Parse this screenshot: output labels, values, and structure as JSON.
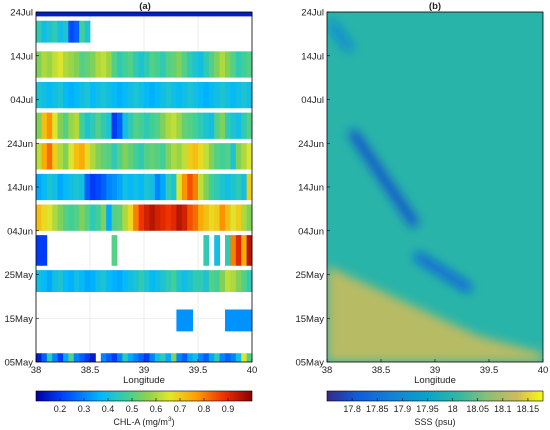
{
  "chart_data": [
    {
      "type": "heatmap",
      "panel_label": "(a)",
      "xlabel": "Longitude",
      "xlim": [
        38,
        40
      ],
      "x_ticks": [
        "38",
        "38.5",
        "39",
        "39.5",
        "40"
      ],
      "y_ticks": [
        "05May",
        "15May",
        "25May",
        "04Jun",
        "14Jun",
        "24Jun",
        "04Jul",
        "14Jul",
        "24Jul"
      ],
      "y_tick_days": [
        0,
        10,
        20,
        30,
        40,
        50,
        60,
        70,
        80
      ],
      "grid": true,
      "colorbar": {
        "label_prefix": "CHL-A (mg/m",
        "label_sup": "3",
        "label_suffix": ")",
        "range": [
          0.1,
          1.0
        ],
        "ticks": [
          "0.2",
          "0.3",
          "0.4",
          "0.5",
          "0.6",
          "0.7",
          "0.8",
          "0.9"
        ],
        "tick_values": [
          0.2,
          0.3,
          0.4,
          0.5,
          0.6,
          0.7,
          0.8,
          0.9
        ],
        "colormap": "jet"
      },
      "bands": [
        {
          "date_from": "05May",
          "date_to": "07May",
          "values": [
            0.15,
            0.25,
            0.45,
            0.3,
            0.2,
            0.35,
            0.5,
            0.3,
            0.25,
            0.2,
            0.15,
            null,
            0.3,
            0.25,
            0.2,
            0.3,
            0.45,
            0.35,
            0.3,
            0.25,
            0.2,
            0.3,
            0.4,
            0.45,
            0.35,
            0.55,
            0.3,
            0.25,
            0.35,
            0.4,
            0.3,
            0.25,
            0.35,
            0.45,
            0.3,
            0.25,
            0.3,
            0.4,
            0.65,
            0.5
          ]
        },
        {
          "date_from": "12May",
          "date_to": "17May",
          "values": [
            null,
            null,
            null,
            null,
            null,
            null,
            null,
            null,
            null,
            null,
            null,
            null,
            null,
            null,
            null,
            null,
            null,
            null,
            null,
            null,
            null,
            null,
            null,
            null,
            null,
            null,
            0.32,
            0.32,
            0.32,
            null,
            null,
            null,
            null,
            null,
            null,
            0.32,
            0.32,
            0.32,
            0.32,
            0.32
          ]
        },
        {
          "date_from": "21May",
          "date_to": "26May",
          "values": [
            0.4,
            0.38,
            0.35,
            0.4,
            0.42,
            0.38,
            0.36,
            0.4,
            0.38,
            0.35,
            0.36,
            0.4,
            0.42,
            0.38,
            0.36,
            0.35,
            0.38,
            0.4,
            0.42,
            0.45,
            0.42,
            0.38,
            0.4,
            0.42,
            0.45,
            0.48,
            0.42,
            0.4,
            0.42,
            0.45,
            0.45,
            0.42,
            0.5,
            0.48,
            0.55,
            0.62,
            0.6,
            0.55,
            0.5,
            0.45
          ]
        },
        {
          "date_from": "27May",
          "date_to": "03Jun",
          "values": [
            0.2,
            0.2,
            null,
            null,
            null,
            null,
            null,
            null,
            null,
            null,
            null,
            null,
            null,
            null,
            0.5,
            null,
            null,
            null,
            null,
            null,
            null,
            null,
            null,
            null,
            null,
            null,
            null,
            null,
            null,
            null,
            null,
            0.45,
            null,
            0.4,
            null,
            0.45,
            0.8,
            0.9,
            0.75,
            0.95
          ]
        },
        {
          "date_from": "04Jun",
          "date_to": "10Jun",
          "values": [
            0.72,
            0.68,
            0.65,
            0.6,
            0.55,
            0.5,
            0.48,
            0.5,
            0.55,
            0.5,
            0.45,
            0.48,
            0.55,
            0.35,
            0.5,
            0.52,
            0.6,
            0.68,
            0.8,
            0.88,
            0.92,
            0.95,
            0.92,
            0.9,
            0.88,
            0.9,
            0.95,
            0.92,
            0.85,
            0.82,
            0.75,
            0.72,
            0.68,
            0.7,
            0.78,
            0.72,
            0.65,
            0.7,
            0.6,
            0.55
          ]
        },
        {
          "date_from": "11Jun",
          "date_to": "17Jun",
          "values": [
            0.35,
            0.38,
            0.42,
            0.4,
            0.35,
            0.38,
            0.4,
            0.42,
            0.4,
            0.25,
            0.2,
            0.22,
            0.25,
            0.3,
            0.32,
            0.35,
            0.4,
            0.38,
            0.4,
            0.38,
            0.42,
            0.4,
            0.3,
            0.35,
            0.45,
            0.42,
            0.65,
            0.78,
            0.85,
            0.8,
            0.62,
            0.55,
            0.48,
            0.45,
            0.42,
            0.4,
            0.42,
            0.45,
            0.4,
            0.7
          ]
        },
        {
          "date_from": "18Jun",
          "date_to": "24Jun",
          "values": [
            0.62,
            0.75,
            0.82,
            0.7,
            0.6,
            0.55,
            0.65,
            0.72,
            0.75,
            0.68,
            0.6,
            0.55,
            0.52,
            0.5,
            0.45,
            0.5,
            0.55,
            0.52,
            0.48,
            0.45,
            0.5,
            0.52,
            0.5,
            0.48,
            0.55,
            0.6,
            0.58,
            0.62,
            0.7,
            0.72,
            0.68,
            0.62,
            0.55,
            0.5,
            0.48,
            0.5,
            0.42,
            0.55,
            0.6,
            0.65
          ]
        },
        {
          "date_from": "25Jun",
          "date_to": "01Jul",
          "values": [
            0.55,
            0.72,
            0.78,
            0.65,
            0.55,
            0.5,
            0.58,
            0.6,
            0.48,
            0.42,
            0.45,
            0.5,
            0.45,
            0.42,
            0.2,
            0.25,
            0.4,
            0.45,
            0.5,
            0.48,
            0.45,
            0.48,
            0.5,
            0.55,
            0.6,
            0.62,
            0.58,
            0.52,
            0.5,
            0.48,
            0.45,
            0.42,
            0.4,
            0.5,
            0.55,
            0.45,
            0.42,
            0.4,
            0.45,
            0.5
          ]
        },
        {
          "date_from": "02Jul",
          "date_to": "08Jul",
          "values": [
            0.42,
            0.4,
            0.38,
            0.4,
            0.42,
            0.38,
            0.36,
            0.38,
            0.4,
            0.42,
            0.38,
            0.4,
            0.42,
            0.4,
            0.38,
            0.36,
            0.38,
            0.4,
            0.42,
            0.4,
            0.38,
            0.36,
            0.38,
            0.4,
            0.42,
            0.4,
            0.38,
            0.4,
            0.42,
            0.4,
            0.38,
            0.36,
            0.38,
            0.4,
            0.42,
            0.4,
            0.38,
            0.4,
            0.42,
            0.4
          ]
        },
        {
          "date_from": "09Jul",
          "date_to": "15Jul",
          "values": [
            0.55,
            0.6,
            0.58,
            0.62,
            0.65,
            0.6,
            0.58,
            0.55,
            0.5,
            0.52,
            0.55,
            0.6,
            0.62,
            0.58,
            0.5,
            0.45,
            0.48,
            0.5,
            0.45,
            0.42,
            0.45,
            0.5,
            0.48,
            0.45,
            0.5,
            0.52,
            0.55,
            0.5,
            0.45,
            0.42,
            0.4,
            0.45,
            0.5,
            0.55,
            0.6,
            0.55,
            0.5,
            0.45,
            0.48,
            0.5
          ]
        },
        {
          "date_from": "17Jul",
          "date_to": "22Jul",
          "values": [
            0.45,
            0.4,
            0.42,
            0.45,
            0.4,
            0.42,
            0.22,
            0.25,
            0.48,
            0.42,
            null,
            null,
            null,
            null,
            null,
            null,
            null,
            null,
            null,
            null,
            null,
            null,
            null,
            null,
            null,
            null,
            null,
            null,
            null,
            null,
            null,
            null,
            null,
            null,
            null,
            null,
            null,
            null,
            null,
            null
          ]
        },
        {
          "date_from": "23Jul",
          "date_to": "24Jul",
          "values": [
            0.15,
            0.15,
            0.15,
            0.15,
            0.15,
            0.15,
            0.15,
            0.15,
            0.15,
            0.15,
            0.15,
            0.15,
            0.15,
            0.15,
            0.15,
            0.15,
            0.15,
            0.15,
            0.15,
            0.15,
            0.15,
            0.15,
            0.15,
            0.15,
            0.15,
            0.15,
            0.15,
            0.15,
            0.15,
            0.15,
            0.15,
            0.15,
            0.15,
            0.15,
            0.15,
            0.15,
            0.15,
            0.15,
            0.15,
            0.15
          ]
        }
      ]
    },
    {
      "type": "heatmap",
      "panel_label": "(b)",
      "xlabel": "Longitude",
      "xlim": [
        38,
        40
      ],
      "x_ticks": [
        "38",
        "38.5",
        "39",
        "39.5",
        "40"
      ],
      "y_ticks": [
        "05May",
        "15May",
        "25May",
        "04Jun",
        "14Jun",
        "24Jun",
        "04Jul",
        "14Jul",
        "24Jul"
      ],
      "y_tick_days": [
        0,
        10,
        20,
        30,
        40,
        50,
        60,
        70,
        80
      ],
      "grid": false,
      "colorbar": {
        "label": "SSS (psu)",
        "range": [
          17.75,
          18.18
        ],
        "ticks": [
          "17.8",
          "17.85",
          "17.9",
          "17.95",
          "18",
          "18.05",
          "18.1",
          "18.15"
        ],
        "tick_values": [
          17.8,
          17.85,
          17.9,
          17.95,
          18.0,
          18.05,
          18.1,
          18.15
        ],
        "colormap": "parula"
      },
      "field": {
        "background_psu": 18.0,
        "south_psu": 18.12,
        "features": [
          {
            "lon_from": 38.25,
            "lon_to": 38.8,
            "date_from": "26Jun",
            "date_to": "06Jun",
            "psu": 17.8
          },
          {
            "lon_from": 38.85,
            "lon_to": 39.3,
            "date_from": "29May",
            "date_to": "22May",
            "psu": 17.83
          },
          {
            "lon_from": 38.05,
            "lon_to": 38.2,
            "date_from": "21Jul",
            "date_to": "16Jul",
            "psu": 17.9
          }
        ]
      }
    }
  ]
}
